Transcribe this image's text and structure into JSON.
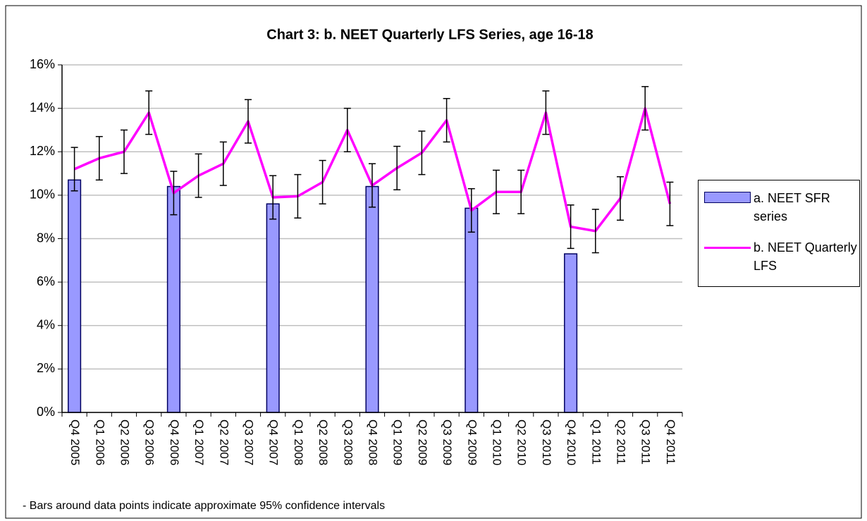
{
  "chart_data": {
    "type": "bar",
    "title": "Chart 3: b. NEET Quarterly LFS Series, age 16-18",
    "annotations": [
      "- Bars around data points indicate approximate 95% confidence intervals"
    ],
    "categories": [
      "Q4 2005",
      "Q1 2006",
      "Q2 2006",
      "Q3 2006",
      "Q4 2006",
      "Q1 2007",
      "Q2 2007",
      "Q3 2007",
      "Q4 2007",
      "Q1 2008",
      "Q2 2008",
      "Q3 2008",
      "Q4 2008",
      "Q1 2009",
      "Q2 2009",
      "Q3 2009",
      "Q4 2009",
      "Q1 2010",
      "Q2 2010",
      "Q3 2010",
      "Q4 2010",
      "Q1 2011",
      "Q2 2011",
      "Q3 2011",
      "Q4 2011"
    ],
    "series": [
      {
        "name": "a. NEET SFR series",
        "type": "bar",
        "color": "#9999ff",
        "values": [
          10.7,
          null,
          null,
          null,
          10.4,
          null,
          null,
          null,
          9.6,
          null,
          null,
          null,
          10.4,
          null,
          null,
          null,
          9.4,
          null,
          null,
          null,
          7.3,
          null,
          null,
          null,
          null
        ]
      },
      {
        "name": "b. NEET Quarterly LFS",
        "type": "line",
        "color": "#ff00ff",
        "values": [
          11.2,
          11.7,
          12.0,
          13.8,
          10.1,
          10.9,
          11.45,
          13.4,
          9.9,
          9.95,
          10.6,
          13.0,
          10.45,
          11.25,
          11.95,
          13.45,
          9.3,
          10.15,
          10.15,
          13.8,
          8.55,
          8.35,
          9.85,
          14.0,
          9.6
        ],
        "errors": [
          1.0,
          1.0,
          1.0,
          1.0,
          1.0,
          1.0,
          1.0,
          1.0,
          1.0,
          1.0,
          1.0,
          1.0,
          1.0,
          1.0,
          1.0,
          1.0,
          1.0,
          1.0,
          1.0,
          1.0,
          1.0,
          1.0,
          1.0,
          1.0,
          1.0
        ]
      }
    ],
    "ylim": [
      0,
      16
    ],
    "yticks": [
      {
        "value": 0,
        "label": "0%"
      },
      {
        "value": 2,
        "label": "2%"
      },
      {
        "value": 4,
        "label": "4%"
      },
      {
        "value": 6,
        "label": "6%"
      },
      {
        "value": 8,
        "label": "8%"
      },
      {
        "value": 10,
        "label": "10%"
      },
      {
        "value": 12,
        "label": "12%"
      },
      {
        "value": 14,
        "label": "14%"
      },
      {
        "value": 16,
        "label": "16%"
      }
    ],
    "grid": true,
    "legend": "right"
  }
}
